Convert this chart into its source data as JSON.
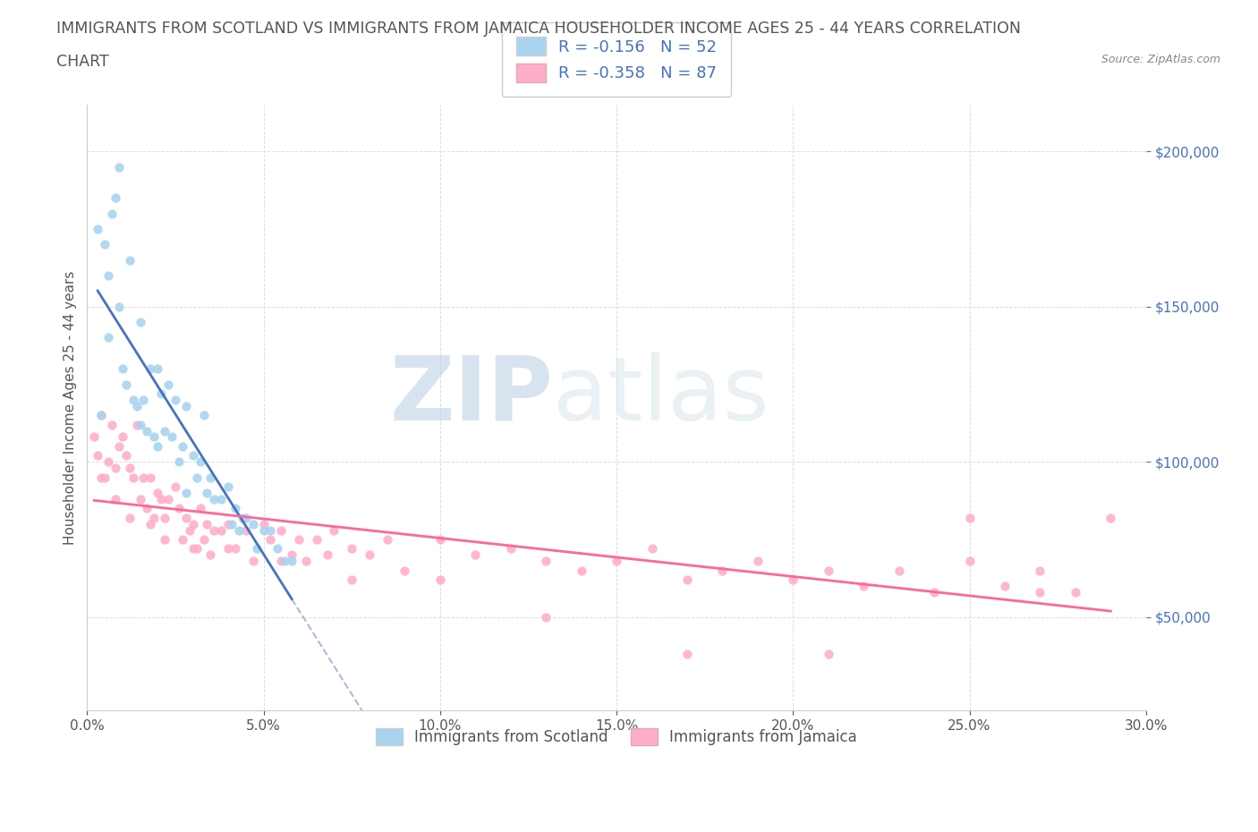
{
  "title_line1": "IMMIGRANTS FROM SCOTLAND VS IMMIGRANTS FROM JAMAICA HOUSEHOLDER INCOME AGES 25 - 44 YEARS CORRELATION",
  "title_line2": "CHART",
  "source_text": "Source: ZipAtlas.com",
  "watermark_text": "ZIP",
  "watermark_text2": "atlas",
  "xlabel": "",
  "ylabel": "Householder Income Ages 25 - 44 years",
  "xlim": [
    0.0,
    0.3
  ],
  "ylim": [
    20000,
    215000
  ],
  "yticks": [
    50000,
    100000,
    150000,
    200000
  ],
  "ytick_labels": [
    "$50,000",
    "$100,000",
    "$150,000",
    "$200,000"
  ],
  "xticks": [
    0.0,
    0.05,
    0.1,
    0.15,
    0.2,
    0.25,
    0.3
  ],
  "xtick_labels": [
    "0.0%",
    "5.0%",
    "10.0%",
    "15.0%",
    "20.0%",
    "25.0%",
    "30.0%"
  ],
  "scotland_color": "#a8d4f0",
  "jamaica_color": "#ffaec9",
  "scotland_line_color": "#4472c4",
  "jamaica_line_color": "#ff6699",
  "trendline_color": "#b0c8e8",
  "legend_r_scotland": "R = -0.156",
  "legend_n_scotland": "N = 52",
  "legend_r_jamaica": "R = -0.358",
  "legend_n_jamaica": "N = 87",
  "scotland_label": "Immigrants from Scotland",
  "jamaica_label": "Immigrants from Jamaica",
  "scotland_x": [
    0.003,
    0.004,
    0.005,
    0.006,
    0.007,
    0.008,
    0.009,
    0.01,
    0.011,
    0.012,
    0.013,
    0.014,
    0.015,
    0.016,
    0.017,
    0.018,
    0.019,
    0.02,
    0.021,
    0.022,
    0.023,
    0.024,
    0.025,
    0.026,
    0.027,
    0.028,
    0.03,
    0.031,
    0.032,
    0.033,
    0.034,
    0.035,
    0.036,
    0.038,
    0.04,
    0.041,
    0.042,
    0.043,
    0.044,
    0.045,
    0.047,
    0.048,
    0.05,
    0.052,
    0.054,
    0.056,
    0.058,
    0.006,
    0.009,
    0.015,
    0.02,
    0.028
  ],
  "scotland_y": [
    175000,
    115000,
    170000,
    160000,
    180000,
    185000,
    195000,
    130000,
    125000,
    165000,
    120000,
    118000,
    112000,
    120000,
    110000,
    130000,
    108000,
    130000,
    122000,
    110000,
    125000,
    108000,
    120000,
    100000,
    105000,
    118000,
    102000,
    95000,
    100000,
    115000,
    90000,
    95000,
    88000,
    88000,
    92000,
    80000,
    85000,
    78000,
    82000,
    82000,
    80000,
    72000,
    78000,
    78000,
    72000,
    68000,
    68000,
    140000,
    150000,
    145000,
    105000,
    90000
  ],
  "jamaica_x": [
    0.002,
    0.003,
    0.004,
    0.005,
    0.006,
    0.007,
    0.008,
    0.009,
    0.01,
    0.011,
    0.012,
    0.013,
    0.014,
    0.015,
    0.016,
    0.017,
    0.018,
    0.019,
    0.02,
    0.021,
    0.022,
    0.023,
    0.025,
    0.026,
    0.027,
    0.028,
    0.029,
    0.03,
    0.031,
    0.032,
    0.033,
    0.034,
    0.035,
    0.036,
    0.038,
    0.04,
    0.042,
    0.045,
    0.047,
    0.05,
    0.052,
    0.055,
    0.058,
    0.06,
    0.062,
    0.065,
    0.068,
    0.07,
    0.075,
    0.08,
    0.085,
    0.09,
    0.1,
    0.11,
    0.12,
    0.13,
    0.14,
    0.15,
    0.16,
    0.17,
    0.18,
    0.19,
    0.2,
    0.21,
    0.22,
    0.23,
    0.24,
    0.25,
    0.26,
    0.27,
    0.28,
    0.29,
    0.004,
    0.008,
    0.012,
    0.018,
    0.022,
    0.03,
    0.04,
    0.055,
    0.075,
    0.1,
    0.13,
    0.17,
    0.21,
    0.25,
    0.27
  ],
  "jamaica_y": [
    108000,
    102000,
    115000,
    95000,
    100000,
    112000,
    98000,
    105000,
    108000,
    102000,
    98000,
    95000,
    112000,
    88000,
    95000,
    85000,
    95000,
    82000,
    90000,
    88000,
    82000,
    88000,
    92000,
    85000,
    75000,
    82000,
    78000,
    80000,
    72000,
    85000,
    75000,
    80000,
    70000,
    78000,
    78000,
    80000,
    72000,
    78000,
    68000,
    80000,
    75000,
    78000,
    70000,
    75000,
    68000,
    75000,
    70000,
    78000,
    72000,
    70000,
    75000,
    65000,
    75000,
    70000,
    72000,
    68000,
    65000,
    68000,
    72000,
    62000,
    65000,
    68000,
    62000,
    65000,
    60000,
    65000,
    58000,
    68000,
    60000,
    65000,
    58000,
    82000,
    95000,
    88000,
    82000,
    80000,
    75000,
    72000,
    72000,
    68000,
    62000,
    62000,
    50000,
    38000,
    38000,
    82000,
    58000
  ],
  "background_color": "#ffffff",
  "grid_color": "#dddddd",
  "title_color": "#555555",
  "axis_label_color": "#555555",
  "ytick_color": "#4472c4",
  "xtick_color": "#555555",
  "legend_text_color": "#4472c4",
  "watermark_color_zip": "#b8cce4",
  "watermark_color_atlas": "#c8dce8",
  "title_fontsize": 12.5,
  "axis_label_fontsize": 11,
  "tick_fontsize": 11,
  "legend_fontsize": 13
}
